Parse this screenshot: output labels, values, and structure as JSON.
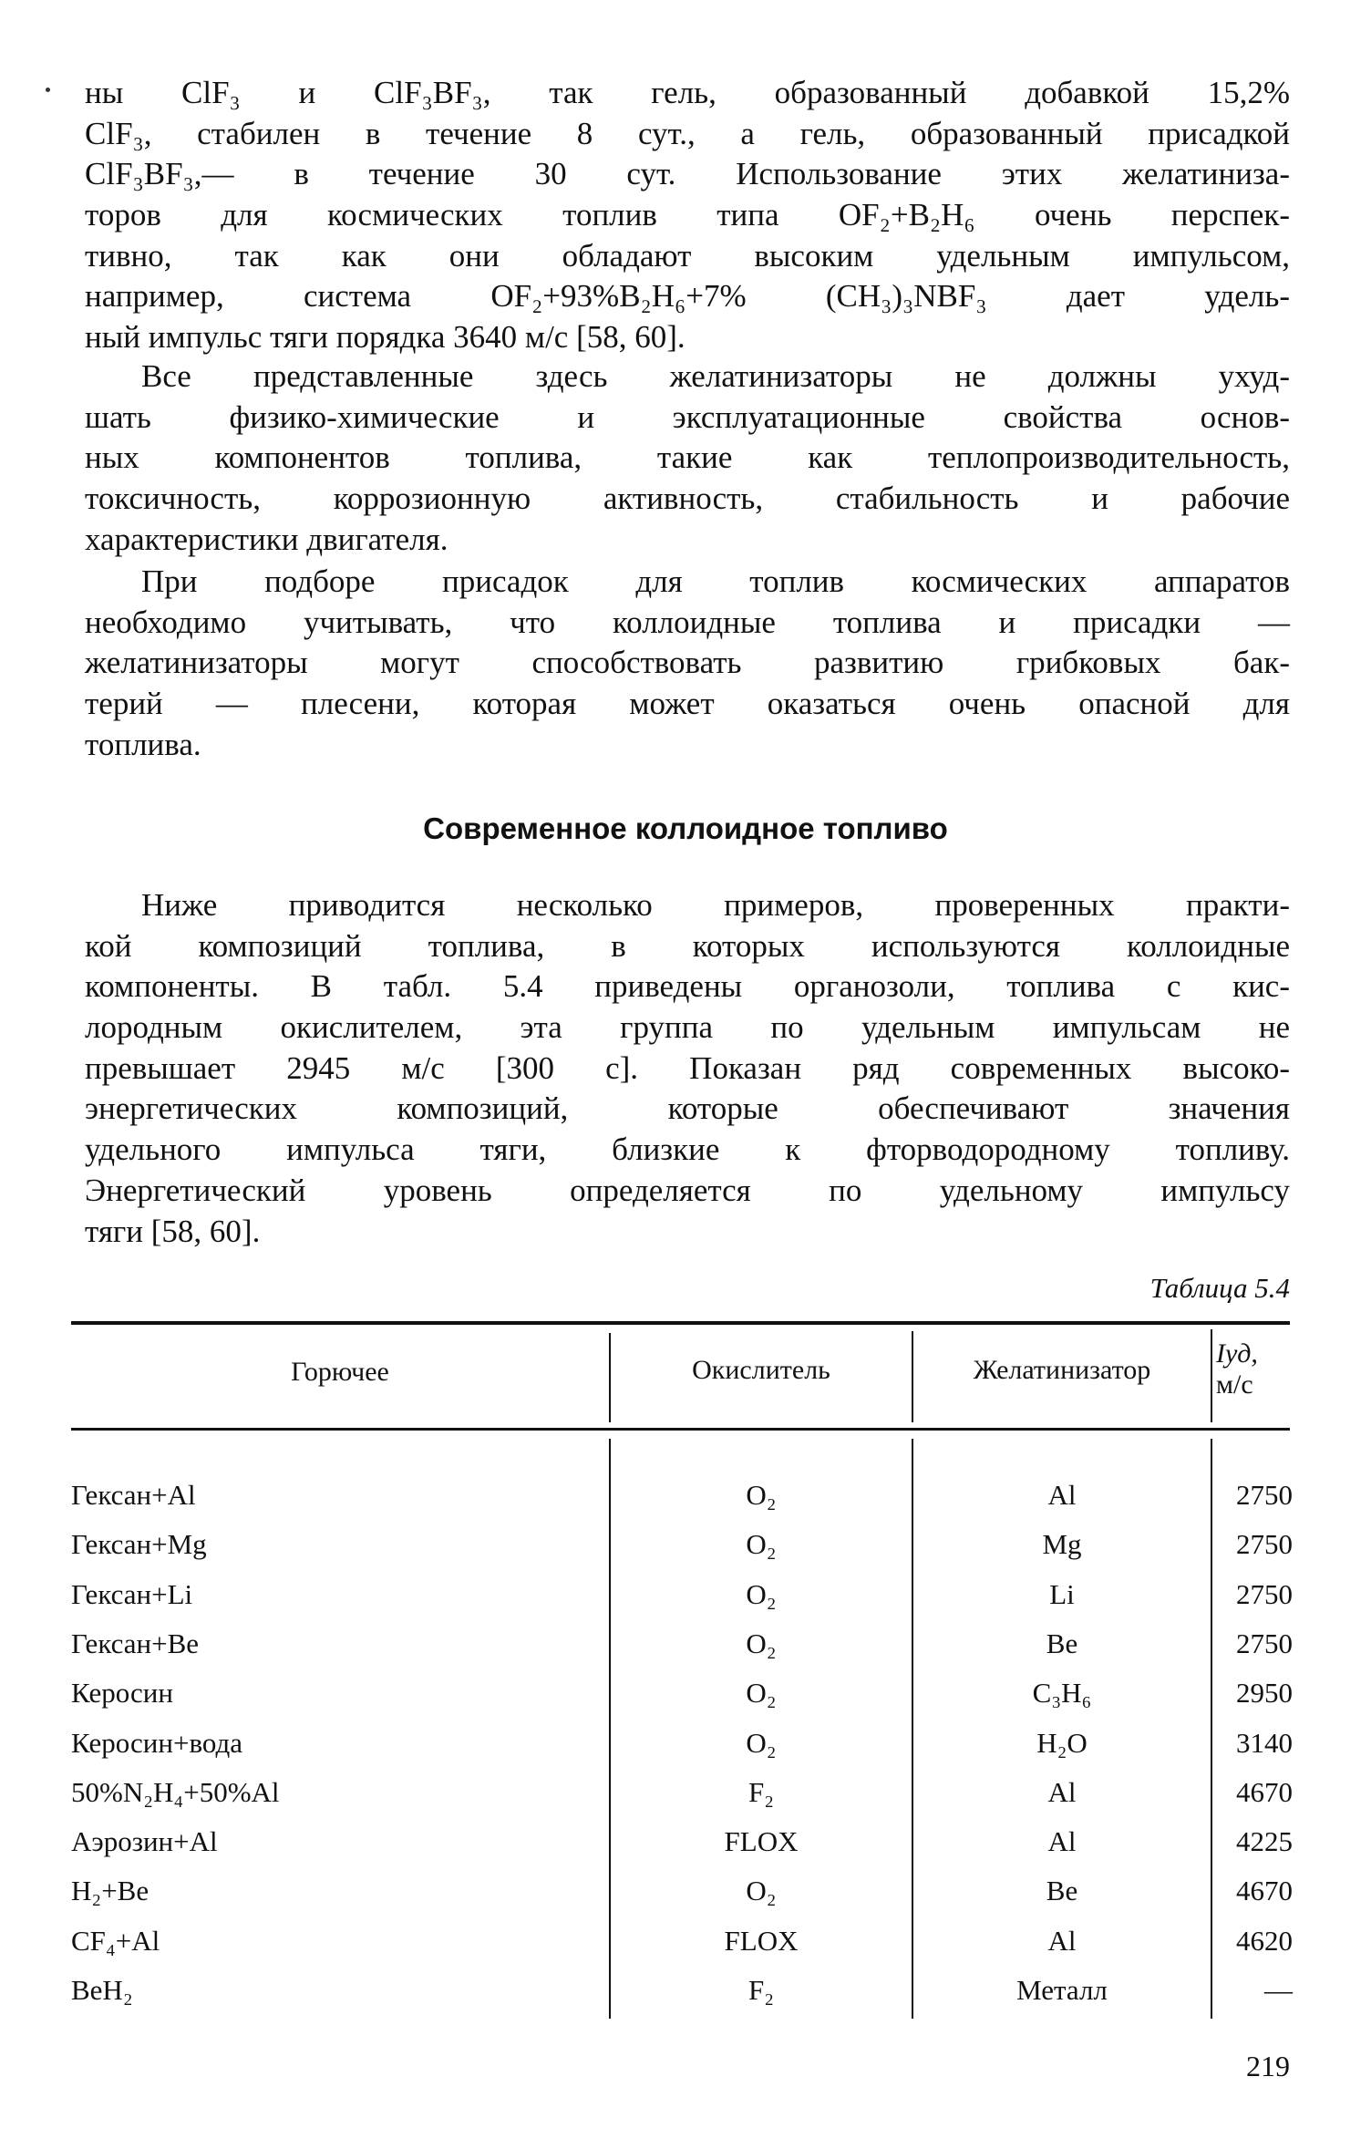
{
  "paragraphs": [
    {
      "indent": false,
      "lines": [
        "ны ClF₃ и ClF₃BF₃, так гель, образованный добавкой 15,2%",
        "ClF₃, стабилен в течение 8 сут., а гель, образованный присадкой",
        "ClF₃BF₃,— в течение 30 сут. Использование этих желатиниза-",
        "торов для космических топлив типа OF₂+B₂H₆ очень перспек-",
        "тивно, так как они обладают высоким удельным импульсом,",
        "например, система OF₂+93%B₂H₆+7% (CH₃)₃NBF₃ дает удель-",
        "ный импульс тяги порядка 3640 м/с [58, 60]."
      ]
    },
    {
      "indent": true,
      "lines": [
        "Все представленные здесь желатинизаторы не должны ухуд-",
        "шать физико-химические и эксплуатационные свойства основ-",
        "ных компонентов топлива, такие как теплопроизводительность,",
        "токсичность, коррозионную активность, стабильность и рабочие",
        "характеристики двигателя."
      ]
    },
    {
      "indent": true,
      "lines": [
        "При подборе присадок для топлив космических аппаратов",
        "необходимо учитывать, что коллоидные топлива и присадки —",
        "желатинизаторы могут способствовать развитию грибковых бак-",
        "терий — плесени, которая может оказаться очень опасной для",
        "топлива."
      ]
    },
    {
      "indent": true,
      "lines": [
        "Ниже приводится несколько примеров, проверенных практи-",
        "кой композиций топлива, в которых используются коллоидные",
        "компоненты. В табл. 5.4 приведены органозоли, топлива с кис-",
        "лородным окислителем, эта группа по удельным импульсам не",
        "превышает 2945 м/с [300 с]. Показан ряд современных высоко-",
        "энергетических композиций, которые обеспечивают значения",
        "удельного импульса тяги, близкие к фторводородному топливу.",
        "Энергетический уровень определяется по удельному импульсу",
        "тяги [58, 60]."
      ]
    }
  ],
  "heading": "Современное коллоидное топливо",
  "table": {
    "caption": "Таблица 5.4",
    "headers": [
      "Горючее",
      "Окислитель",
      "Желатинизатор",
      "Iуд,",
      "м/с"
    ],
    "rows": [
      [
        "Гексан+Al",
        "O₂",
        "Al",
        "2750"
      ],
      [
        "Гексан+Mg",
        "O₂",
        "Mg",
        "2750"
      ],
      [
        "Гексан+Li",
        "O₂",
        "Li",
        "2750"
      ],
      [
        "Гексан+Be",
        "O₂",
        "Be",
        "2750"
      ],
      [
        "Керосин",
        "O₂",
        "C₃H₆",
        "2950"
      ],
      [
        "Керосин+вода",
        "O₂",
        "H₂O",
        "3140"
      ],
      [
        "50%N₂H₄+50%Al",
        "F₂",
        "Al",
        "4670"
      ],
      [
        "Аэрозин+Al",
        "FLOX",
        "Al",
        "4225"
      ],
      [
        "H₂+Be",
        "O₂",
        "Be",
        "4670"
      ],
      [
        "CF₄+Al",
        "FLOX",
        "Al",
        "4620"
      ],
      [
        "BeH₂",
        "F₂",
        "Металл",
        "—"
      ]
    ]
  },
  "page_number": "219"
}
